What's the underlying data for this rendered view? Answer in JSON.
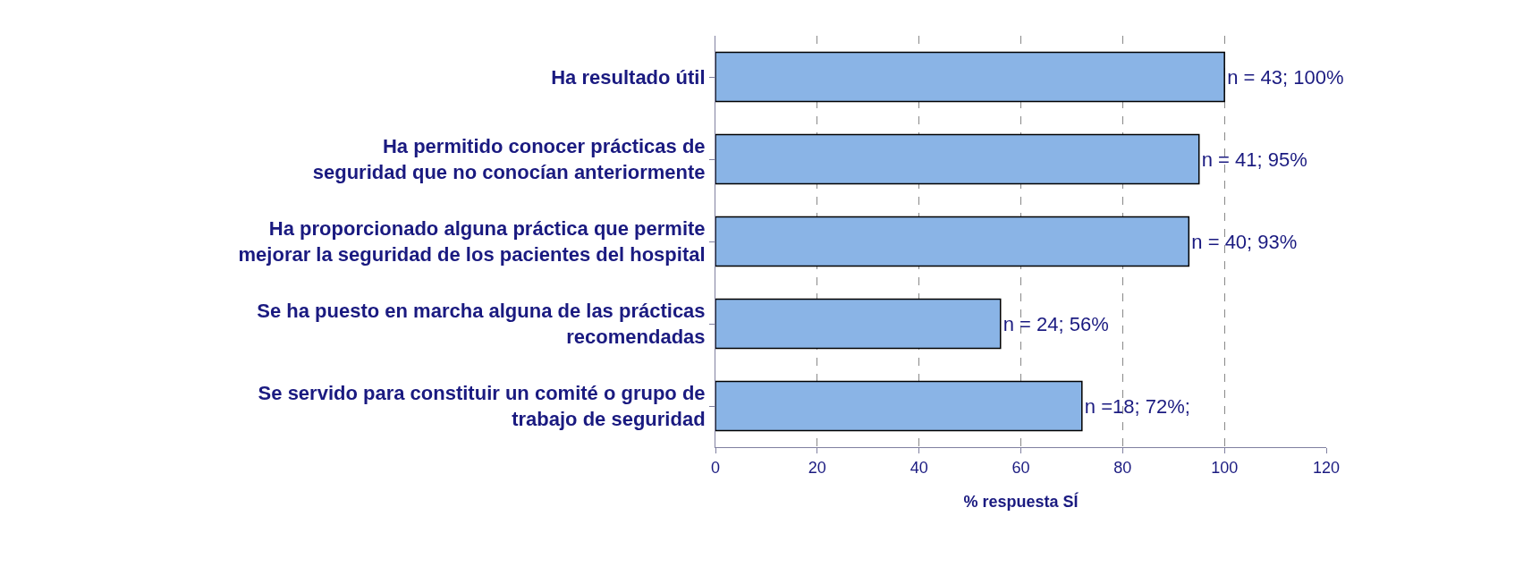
{
  "chart_data": {
    "type": "bar",
    "orientation": "horizontal",
    "xlabel": "% respuesta SÍ",
    "categories": [
      "Ha resultado útil",
      "Ha permitido conocer prácticas de\nseguridad que no conocían anteriormente",
      "Ha proporcionado alguna práctica que permite\nmejorar la seguridad de los pacientes del hospital",
      "Se ha puesto en marcha alguna de las prácticas\nrecomendadas",
      "Se servido para constituir un comité o grupo de\ntrabajo de seguridad"
    ],
    "values": [
      100,
      95,
      93,
      56,
      72
    ],
    "value_labels": [
      "n = 43; 100%",
      "n = 41; 95%",
      "n = 40; 93%",
      "n = 24; 56%",
      "n =18; 72%;"
    ],
    "color": "#8ab4e6",
    "xlim": [
      0,
      120
    ],
    "xticks": [
      0,
      20,
      40,
      60,
      80,
      100,
      120
    ],
    "grid": "x"
  }
}
